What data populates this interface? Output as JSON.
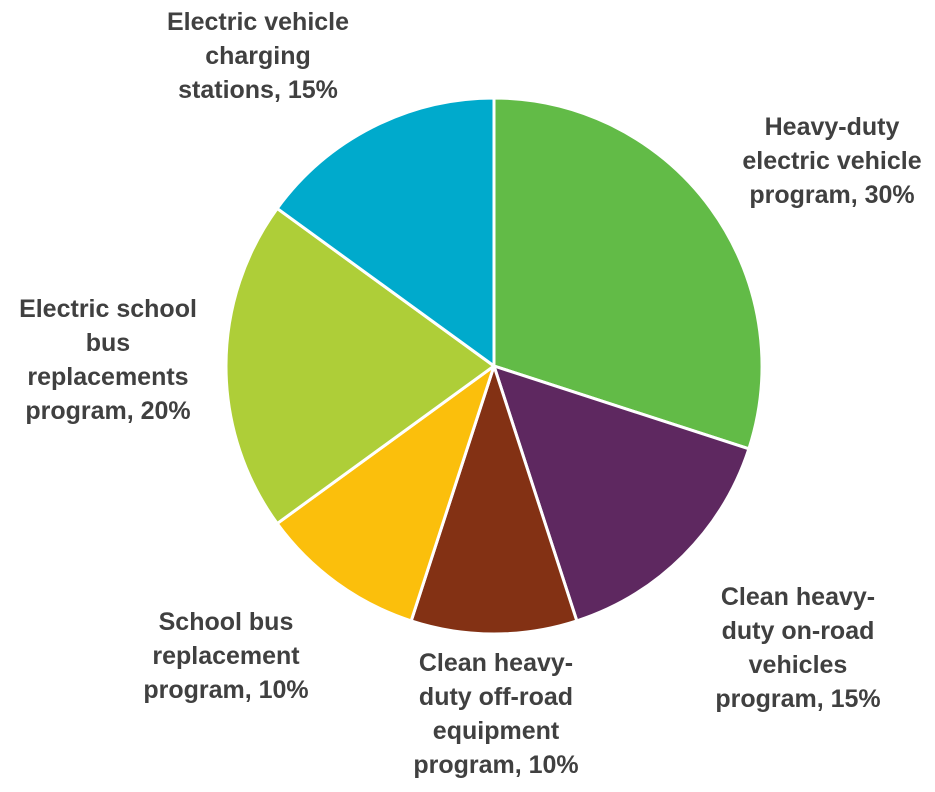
{
  "chart_data": {
    "type": "pie",
    "start_angle_deg": 0,
    "direction": "clockwise",
    "slices": [
      {
        "label": "Heavy-duty electric vehicle program",
        "value": 30,
        "display": "Heavy-duty\nelectric vehicle\nprogram, 30%",
        "color": "#62bb47"
      },
      {
        "label": "Clean heavy-duty on-road vehicles program",
        "value": 15,
        "display": "Clean heavy-\nduty on-road\nvehicles\nprogram, 15%",
        "color": "#5e2860"
      },
      {
        "label": "Clean heavy-duty off-road equipment program",
        "value": 10,
        "display": "Clean heavy-\nduty off-road\nequipment\nprogram, 10%",
        "color": "#833114"
      },
      {
        "label": "School bus replacement program",
        "value": 10,
        "display": "School bus\nreplacement\nprogram, 10%",
        "color": "#fbbf0c"
      },
      {
        "label": "Electric school bus replacements program",
        "value": 20,
        "display": "Electric school\nbus\nreplacements\nprogram, 20%",
        "color": "#aece38"
      },
      {
        "label": "Electric vehicle charging stations",
        "value": 15,
        "display": "Electric vehicle\ncharging\nstations, 15%",
        "color": "#00aacc"
      }
    ]
  }
}
